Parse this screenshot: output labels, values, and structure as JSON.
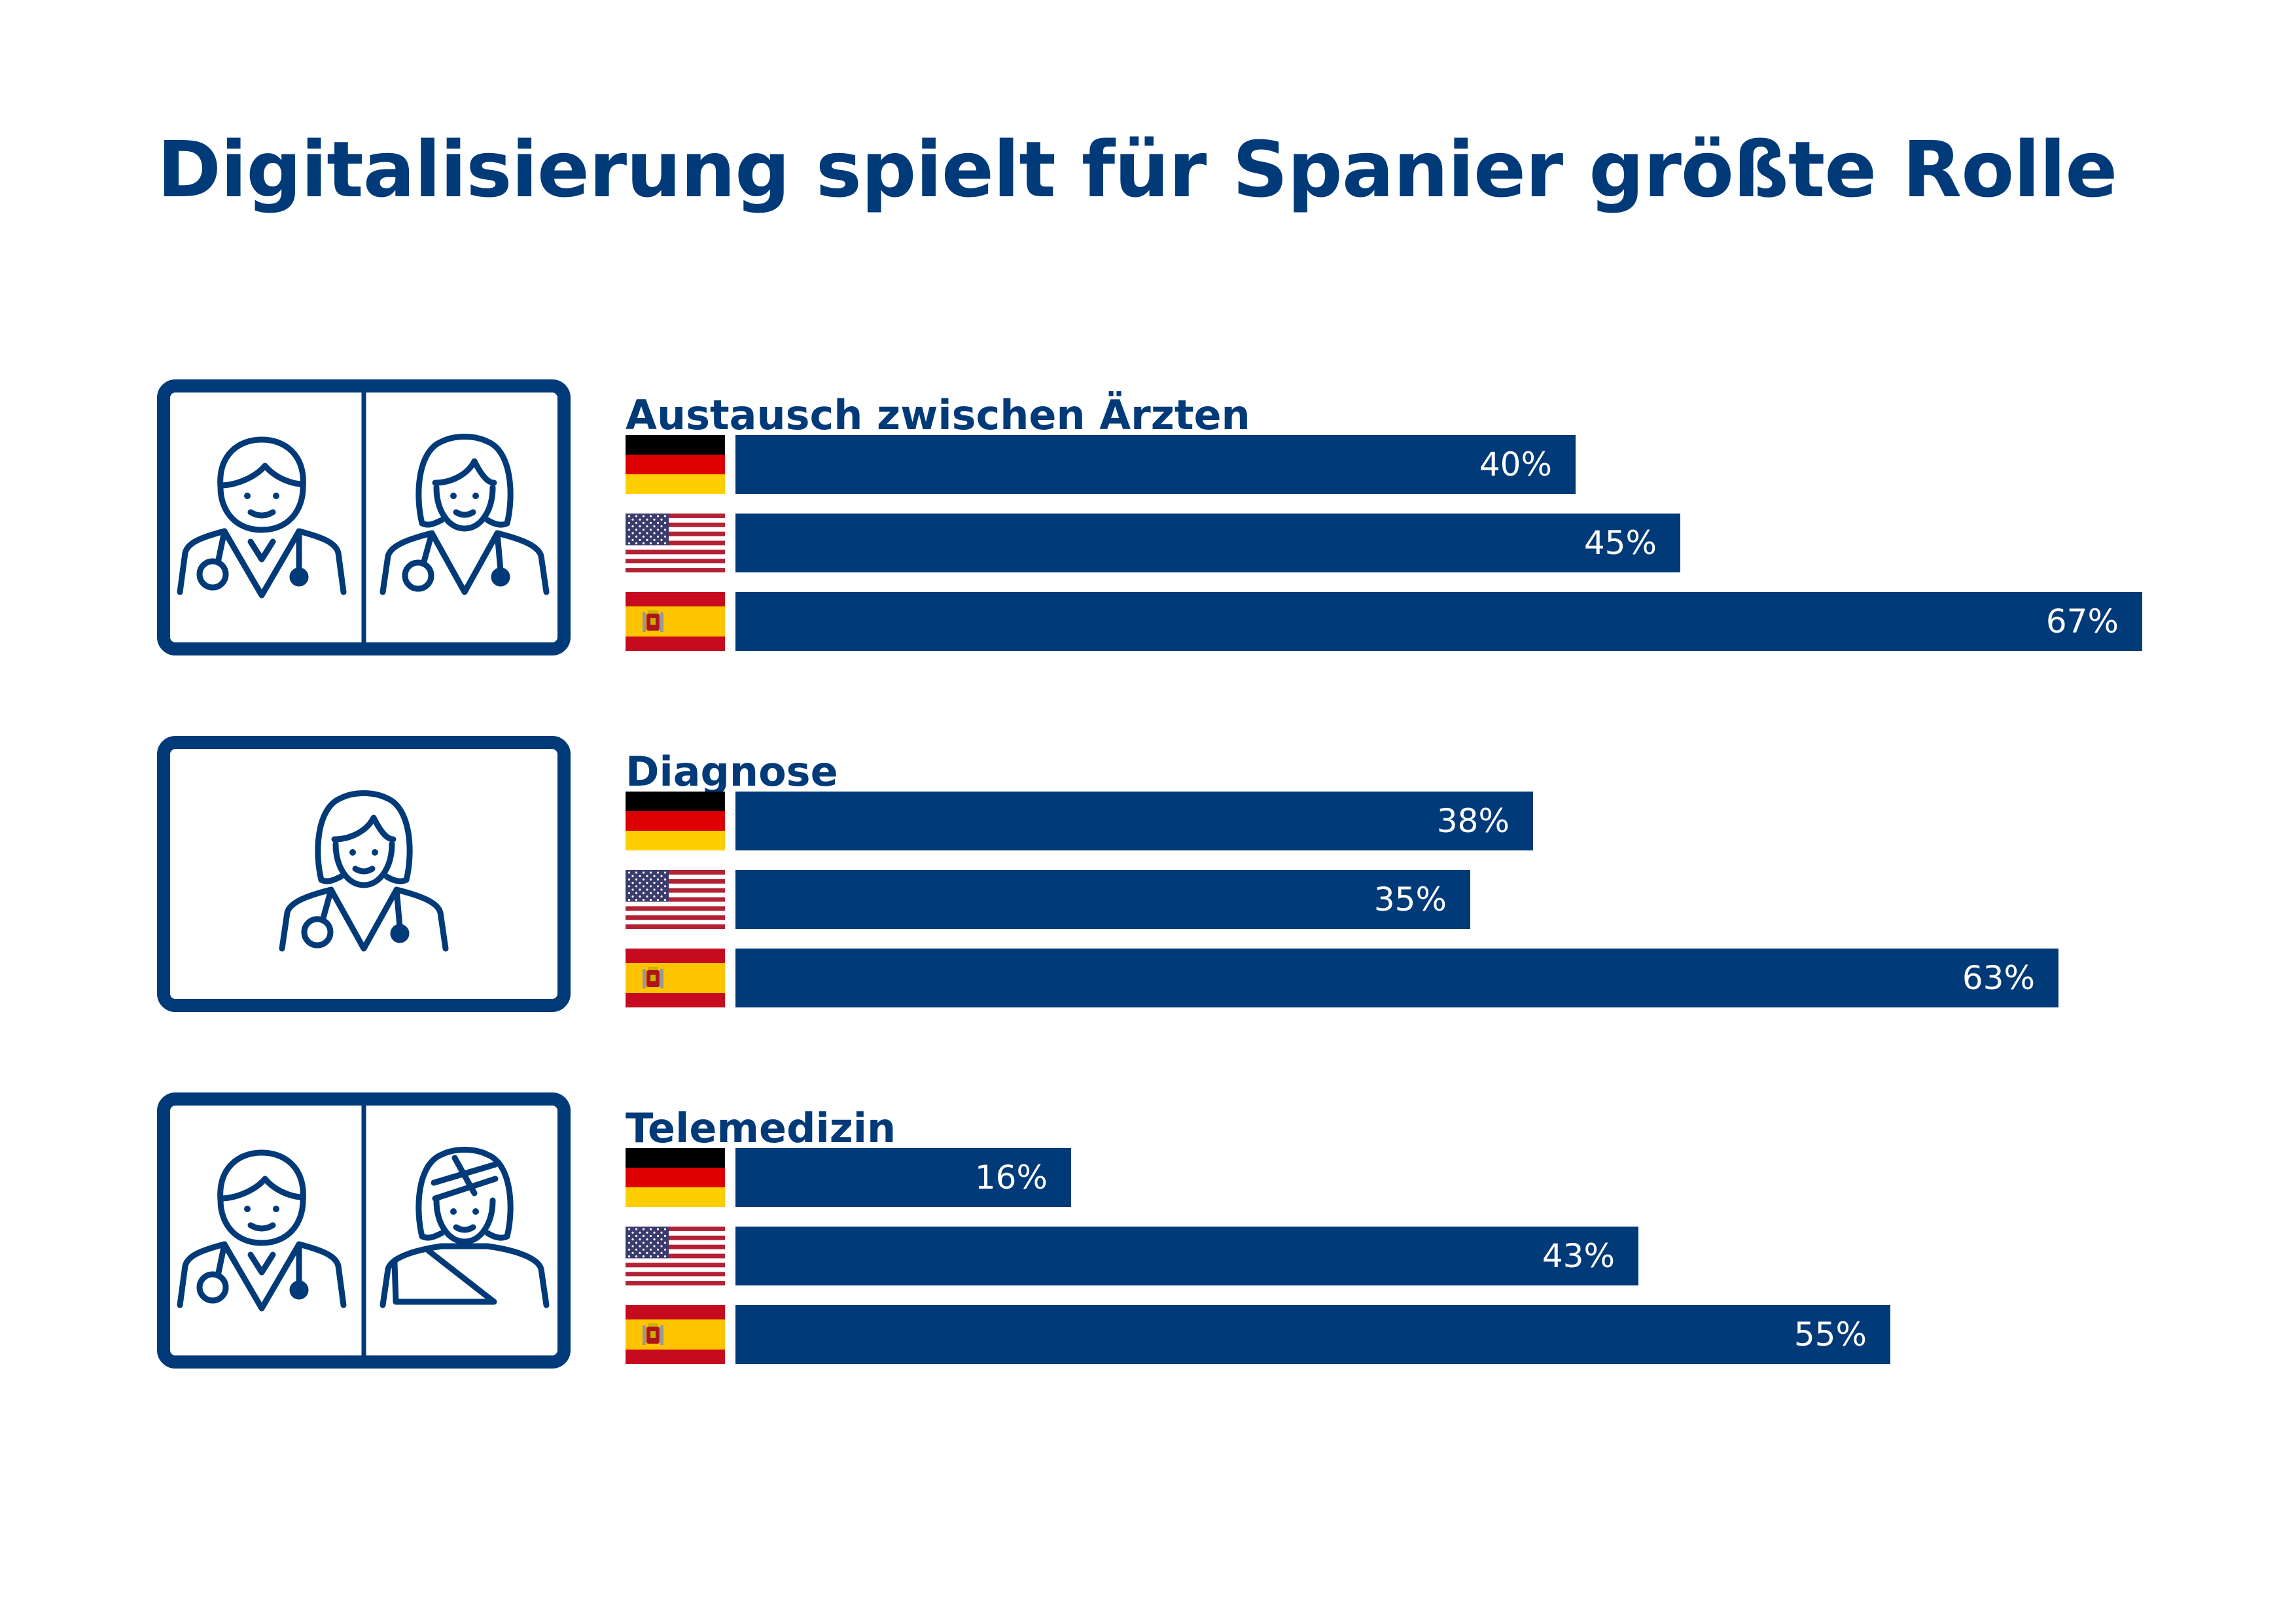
{
  "chart_data": {
    "type": "bar",
    "title": "Digitalisierung spielt für Spanier größte Rolle",
    "categories": [
      "Austausch zwischen Ärzten",
      "Diagnose",
      "Telemedizin"
    ],
    "series": [
      {
        "country": "germany",
        "values": [
          40,
          38,
          16
        ],
        "labels": [
          "40%",
          "38%",
          "16%"
        ]
      },
      {
        "country": "usa",
        "values": [
          45,
          35,
          43
        ],
        "labels": [
          "45%",
          "35%",
          "43%"
        ]
      },
      {
        "country": "spain",
        "values": [
          67,
          63,
          55
        ],
        "labels": [
          "67%",
          "63%",
          "55%"
        ]
      }
    ],
    "groups": [
      {
        "icon": "doctors-exchange-icon",
        "label": "Austausch zwischen Ärzten",
        "values": [
          40,
          45,
          67
        ],
        "labels": [
          "40%",
          "45%",
          "67%"
        ]
      },
      {
        "icon": "doctor-diagnosis-icon",
        "label": "Diagnose",
        "values": [
          38,
          35,
          63
        ],
        "labels": [
          "38%",
          "35%",
          "63%"
        ]
      },
      {
        "icon": "doctor-patient-telemedicine-icon",
        "label": "Telemedizin",
        "values": [
          16,
          43,
          55
        ],
        "labels": [
          "16%",
          "43%",
          "55%"
        ]
      }
    ],
    "unit": "%",
    "xlim": [
      0,
      67
    ],
    "grid": false,
    "colors": {
      "bar": "#003a78",
      "text": "#003a78",
      "bar_text": "#ffffff"
    }
  }
}
